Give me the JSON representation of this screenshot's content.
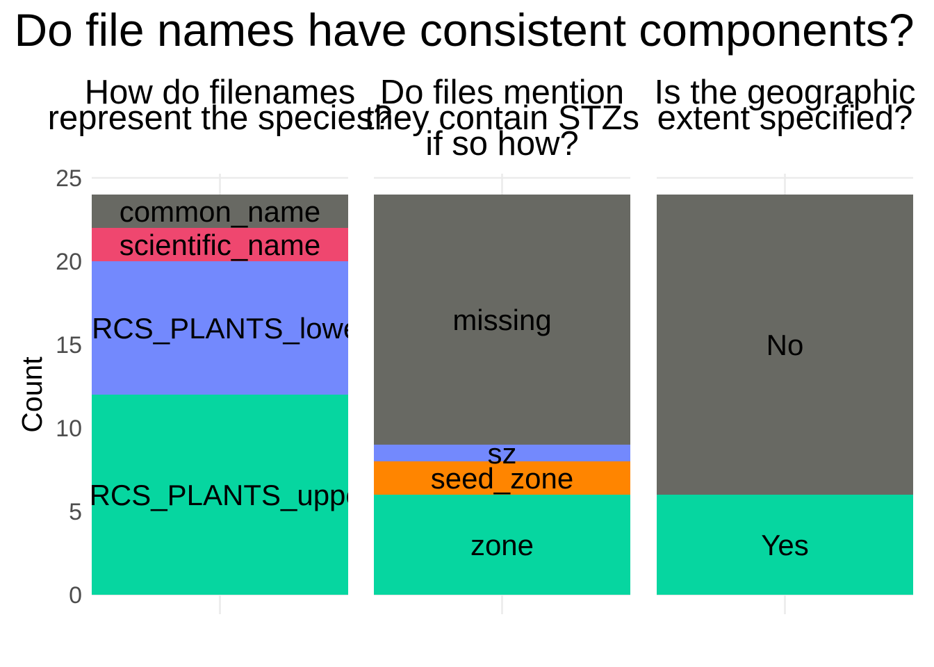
{
  "title": "Do file names have consistent components?",
  "chart_data": {
    "type": "bar",
    "stacked": true,
    "ylabel": "Count",
    "ylim": [
      0,
      25
    ],
    "yticks": [
      0,
      5,
      10,
      15,
      20,
      25
    ],
    "grid": true,
    "legend": "none",
    "panels": [
      {
        "title_lines": [
          "How do filenames",
          "represent the species?"
        ],
        "segments": [
          {
            "name": "NRCS_PLANTS_upper",
            "value": 12,
            "color": "#06d6a0"
          },
          {
            "name": "NRCS_PLANTS_lower",
            "value": 8,
            "color": "#7389fd"
          },
          {
            "name": "scientific_name",
            "value": 2,
            "color": "#ef476f"
          },
          {
            "name": "common_name",
            "value": 2,
            "color": "#686963"
          }
        ]
      },
      {
        "title_lines": [
          "Do files mention",
          "they contain STZs",
          "if so how?"
        ],
        "segments": [
          {
            "name": "zone",
            "value": 6,
            "color": "#06d6a0"
          },
          {
            "name": "seed_zone",
            "value": 2,
            "color": "#ff8500"
          },
          {
            "name": "sz",
            "value": 1,
            "color": "#7389fd"
          },
          {
            "name": "missing",
            "value": 15,
            "color": "#686963"
          }
        ]
      },
      {
        "title_lines": [
          "Is the geographic",
          "extent specified?"
        ],
        "segments": [
          {
            "name": "Yes",
            "value": 6,
            "color": "#06d6a0"
          },
          {
            "name": "No",
            "value": 18,
            "color": "#686963"
          }
        ]
      }
    ]
  }
}
